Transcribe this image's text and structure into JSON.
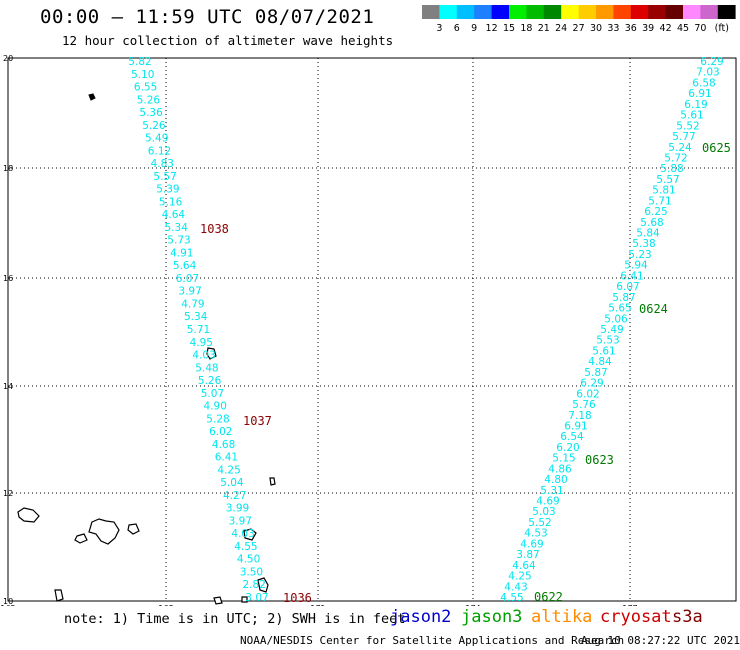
{
  "title": "00:00 – 11:59 UTC 08/07/2021",
  "subtitle": "12 hour collection of altimeter wave heights",
  "colorbar": {
    "unit": "(ft)",
    "ticks": [
      "3",
      "6",
      "9",
      "12",
      "15",
      "18",
      "21",
      "24",
      "27",
      "30",
      "33",
      "36",
      "39",
      "42",
      "45",
      "70"
    ],
    "colors": [
      "#808080",
      "#00ffff",
      "#00bfff",
      "#1e7fff",
      "#0000ff",
      "#00ee00",
      "#00bb00",
      "#008800",
      "#ffff00",
      "#ffcc00",
      "#ff9900",
      "#ff4400",
      "#dd0000",
      "#990000",
      "#660000",
      "#ff88ff",
      "#cc66cc",
      "#000000"
    ]
  },
  "axes": {
    "lat_labels": [
      "20",
      "18",
      "16",
      "14",
      "12",
      "10"
    ],
    "lon_labels": [
      "165",
      "168",
      "171",
      "174",
      "177"
    ]
  },
  "tracks": [
    {
      "name": "track-1038",
      "color": "#00e5ee",
      "values": [
        "5.82",
        "5.10",
        "6.55",
        "5.26",
        "5.36",
        "5.26",
        "5.49",
        "6.12",
        "4.83",
        "5.57",
        "5.39",
        "5.16",
        "4.64",
        "5.34",
        "5.73",
        "4.91",
        "5.64",
        "6.07",
        "3.97",
        "4.79",
        "5.34",
        "5.71",
        "4.95",
        "4.03",
        "5.48",
        "5.26",
        "5.07",
        "4.90",
        "5.28",
        "6.02",
        "4.68",
        "6.41",
        "4.25",
        "5.04",
        "4.27",
        "3.99",
        "3.97",
        "4.03",
        "4.55",
        "4.50",
        "3.50",
        "2.82",
        "3.07"
      ],
      "time_labels": [
        {
          "text": "1038",
          "index": 13
        },
        {
          "text": "1037",
          "index": 28
        },
        {
          "text": "1036",
          "index": 42
        }
      ]
    },
    {
      "name": "track-0625",
      "color": "#00e5ee",
      "values": [
        "6.29",
        "7.03",
        "6.58",
        "6.91",
        "6.19",
        "5.61",
        "5.52",
        "5.77",
        "5.24",
        "5.72",
        "5.88",
        "5.57",
        "5.81",
        "5.71",
        "6.25",
        "5.68",
        "5.84",
        "5.38",
        "5.23",
        "5.94",
        "6.41",
        "6.07",
        "5.87",
        "5.65",
        "5.06",
        "5.49",
        "5.53",
        "5.61",
        "4.84",
        "5.87",
        "6.29",
        "6.02",
        "5.76",
        "7.18",
        "6.91",
        "6.54",
        "6.20",
        "5.15",
        "4.86",
        "4.80",
        "5.31",
        "4.69",
        "5.03",
        "5.52",
        "4.53",
        "4.69",
        "3.87",
        "4.64",
        "4.25",
        "4.43",
        "4.55"
      ],
      "time_labels": [
        {
          "text": "0625",
          "index": 8
        },
        {
          "text": "0624",
          "index": 23
        },
        {
          "text": "0623",
          "index": 37
        },
        {
          "text": "0622",
          "index": 50
        }
      ]
    }
  ],
  "footer": {
    "note": "note: 1) Time is in UTC; 2) SWH is in feet",
    "satellites": [
      "jason2",
      "jason3",
      "altika",
      "cryosat",
      "s3a"
    ],
    "credit": "NOAA/NESDIS Center for Satellite Applications and Research",
    "timestamp": "Aug 10 08:27:22 UTC 2021"
  }
}
